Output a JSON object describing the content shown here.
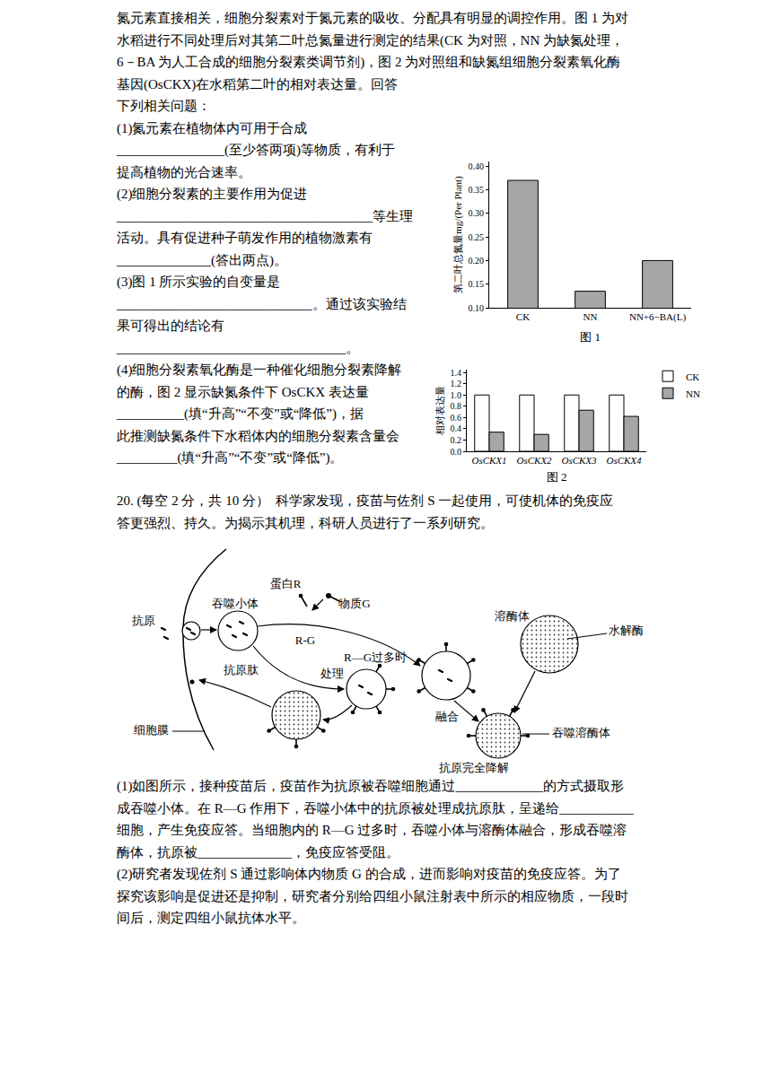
{
  "page": {
    "intro_lines": [
      "氮元素直接相关，细胞分裂素对于氮元素的吸收、分配具有明显的调控作用。图 1 为对",
      "水稻进行不同处理后对其第二叶总氮量进行测定的结果(CK 为对照，NN 为缺氮处理，",
      "6－BA 为人工合成的细胞分裂素类调节剂)，图 2 为对照组和缺氮组细胞分裂素氧化酶",
      "基因(OsCKX)在水稻第二叶的相对表达量。回答"
    ],
    "side_lines": [
      "下列相关问题：",
      "(1)氮元素在植物体内可用于合成",
      "________________(至少答两项)等物质，有利于",
      "提高植物的光合速率。",
      "(2)细胞分裂素的主要作用为促进",
      "______________________________________等生理",
      "活动。具有促进种子萌发作用的植物激素有",
      "______________(答出两点)。",
      "(3)图 1 所示实验的自变量是",
      "_____________________________。通过该实验结",
      "果可得出的结论有",
      "__________________________________。",
      "(4)细胞分裂素氧化酶是一种催化细胞分裂素降解",
      "的酶，图 2 显示缺氮条件下 OsCKX 表达量",
      "__________(填“升高”“不变”或“降低”)，据",
      "此推测缺氮条件下水稻体内的细胞分裂素含量会",
      "_________(填“升高”“不变”或“降低”)。"
    ],
    "q20_lines": [
      "20. (每空 2 分，共 10 分）  科学家发现，疫苗与佐剂 S 一起使用，可使机体的免疫应",
      "答更强烈、持久。为揭示其机理，科研人员进行了一系列研究。"
    ],
    "q20_sub_lines": [
      "(1)如图所示，接种疫苗后，疫苗作为抗原被吞噬细胞通过_____________的方式摄取形",
      "成吞噬小体。在 R—G 作用下，吞噬小体中的抗原被处理成抗原肽，呈递给___________",
      "细胞，产生免疫应答。当细胞内的 R—G 过多时，吞噬小体与溶酶体融合，形成吞噬溶",
      "酶体，抗原被______________，免疫应答受阻。",
      "(2)研究者发现佐剂 S 通过影响体内物质 G 的合成，进而影响对疫苗的免疫应答。为了",
      "探究该影响是促进还是抑制，研究者分别给四组小鼠注射表中所示的相应物质，一段时",
      "间后，测定四组小鼠抗体水平。"
    ]
  },
  "chart_data": [
    {
      "type": "bar",
      "title": "图 1",
      "ylabel": "第二叶总氮量mg/(Per Plant)",
      "categories": [
        "CK",
        "NN",
        "NN+6−BA(L)"
      ],
      "values": [
        0.37,
        0.135,
        0.2
      ],
      "color": "#a6a6a6",
      "ylim": [
        0.1,
        0.41
      ],
      "yticks": [
        {
          "value": 0.1,
          "label": "0.10"
        },
        0.15,
        {
          "value": 0.2,
          "label": "0.20"
        },
        0.25,
        {
          "value": 0.3,
          "label": "0.30"
        },
        0.35,
        {
          "value": 0.4,
          "label": "0.40"
        }
      ],
      "grid": false
    },
    {
      "type": "bar",
      "title": "图 2",
      "ylabel": "相对表达量",
      "categories": [
        "OsCKX1",
        "OsCKX2",
        "OsCKX3",
        "OsCKX4"
      ],
      "series": [
        {
          "name": "CK",
          "color": "#ffffff",
          "values": [
            1,
            1,
            1,
            1
          ]
        },
        {
          "name": "NN",
          "color": "#a6a6a6",
          "values": [
            0.34,
            0.3,
            0.73,
            0.62
          ]
        }
      ],
      "ylim": [
        0,
        1.45
      ],
      "yticks": [
        {
          "value": 0,
          "label": "0.0"
        },
        0.2,
        0.4,
        0.6,
        0.8,
        {
          "value": 1,
          "label": "1.0"
        },
        1.2,
        1.4
      ],
      "grid": false,
      "legend": "upper right"
    }
  ],
  "diagram": {
    "protein_r": "蛋白R",
    "substance_g": "物质G",
    "rg": "R-G",
    "rg_excess": "R—G过多时",
    "antigen": "抗原",
    "phagosome": "吞噬小体",
    "peptide": "抗原肽",
    "process": "处理",
    "membrane": "细胞膜",
    "lysosome": "溶酶体",
    "hydrolase": "水解酶",
    "fusion": "融合",
    "phagolysosome": "吞噬溶酶体",
    "degraded": "抗原完全降解"
  }
}
